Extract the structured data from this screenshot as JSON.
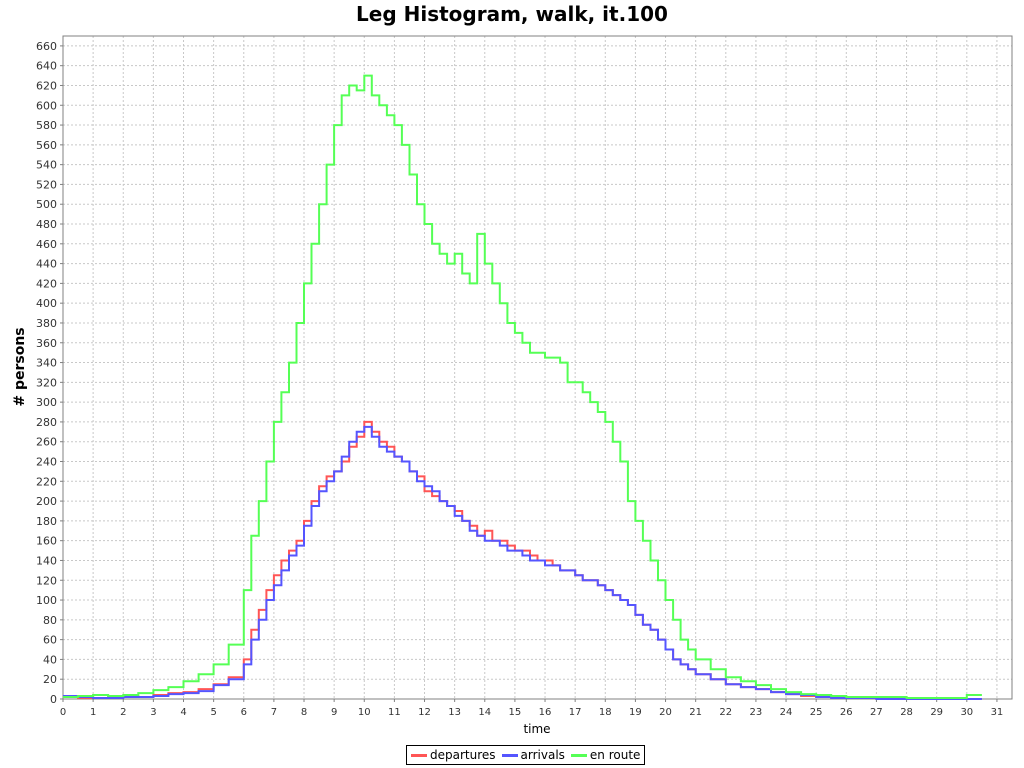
{
  "chart_data": {
    "type": "line",
    "title": "Leg Histogram, walk, it.100",
    "xlabel": "time",
    "ylabel": "# persons",
    "xlim": [
      0,
      31.5
    ],
    "ylim": [
      0,
      670
    ],
    "x_ticks": [
      0,
      1,
      2,
      3,
      4,
      5,
      6,
      7,
      8,
      9,
      10,
      11,
      12,
      13,
      14,
      15,
      16,
      17,
      18,
      19,
      20,
      21,
      22,
      23,
      24,
      25,
      26,
      27,
      28,
      29,
      30,
      31
    ],
    "y_ticks": [
      0,
      20,
      40,
      60,
      80,
      100,
      120,
      140,
      160,
      180,
      200,
      220,
      240,
      260,
      280,
      300,
      320,
      340,
      360,
      380,
      400,
      420,
      440,
      460,
      480,
      500,
      520,
      540,
      560,
      580,
      600,
      620,
      640,
      660
    ],
    "grid": true,
    "legend_position": "bottom",
    "series": [
      {
        "name": "departures",
        "color": "#ff5555",
        "x": [
          0,
          0.5,
          1,
          1.5,
          2,
          2.5,
          3,
          3.5,
          4,
          4.5,
          5,
          5.5,
          6,
          6.25,
          6.5,
          6.75,
          7,
          7.25,
          7.5,
          7.75,
          8,
          8.25,
          8.5,
          8.75,
          9,
          9.25,
          9.5,
          9.75,
          10,
          10.25,
          10.5,
          10.75,
          11,
          11.25,
          11.5,
          11.75,
          12,
          12.25,
          12.5,
          12.75,
          13,
          13.25,
          13.5,
          13.75,
          14,
          14.25,
          14.5,
          14.75,
          15,
          15.25,
          15.5,
          15.75,
          16,
          16.25,
          16.5,
          16.75,
          17,
          17.25,
          17.5,
          17.75,
          18,
          18.25,
          18.5,
          18.75,
          19,
          19.25,
          19.5,
          19.75,
          20,
          20.25,
          20.5,
          20.75,
          21,
          21.5,
          22,
          22.5,
          23,
          23.5,
          24,
          24.5,
          25,
          25.5,
          26,
          27,
          28,
          29,
          30
        ],
        "y": [
          2,
          1,
          1,
          2,
          3,
          2,
          4,
          6,
          7,
          10,
          15,
          22,
          40,
          70,
          90,
          110,
          125,
          140,
          150,
          160,
          180,
          200,
          215,
          225,
          230,
          240,
          255,
          265,
          280,
          270,
          260,
          255,
          245,
          240,
          230,
          225,
          210,
          205,
          200,
          195,
          190,
          180,
          175,
          165,
          170,
          160,
          160,
          155,
          150,
          150,
          145,
          140,
          140,
          135,
          130,
          130,
          125,
          120,
          120,
          115,
          110,
          105,
          100,
          95,
          85,
          75,
          70,
          60,
          50,
          40,
          35,
          30,
          25,
          20,
          15,
          12,
          10,
          7,
          5,
          3,
          2,
          1,
          1,
          0,
          0,
          0,
          0
        ]
      },
      {
        "name": "arrivals",
        "color": "#5555ff",
        "x": [
          0,
          0.5,
          1,
          1.5,
          2,
          2.5,
          3,
          3.5,
          4,
          4.5,
          5,
          5.5,
          6,
          6.25,
          6.5,
          6.75,
          7,
          7.25,
          7.5,
          7.75,
          8,
          8.25,
          8.5,
          8.75,
          9,
          9.25,
          9.5,
          9.75,
          10,
          10.25,
          10.5,
          10.75,
          11,
          11.25,
          11.5,
          11.75,
          12,
          12.25,
          12.5,
          12.75,
          13,
          13.25,
          13.5,
          13.75,
          14,
          14.25,
          14.5,
          14.75,
          15,
          15.25,
          15.5,
          15.75,
          16,
          16.25,
          16.5,
          16.75,
          17,
          17.25,
          17.5,
          17.75,
          18,
          18.25,
          18.5,
          18.75,
          19,
          19.25,
          19.5,
          19.75,
          20,
          20.25,
          20.5,
          20.75,
          21,
          21.5,
          22,
          22.5,
          23,
          23.5,
          24,
          24.5,
          25,
          25.5,
          26,
          27,
          28,
          29,
          30
        ],
        "y": [
          3,
          2,
          1,
          1,
          2,
          2,
          3,
          5,
          6,
          8,
          14,
          20,
          35,
          60,
          80,
          100,
          115,
          130,
          145,
          155,
          175,
          195,
          210,
          220,
          230,
          245,
          260,
          270,
          275,
          265,
          255,
          250,
          245,
          240,
          230,
          220,
          215,
          210,
          200,
          195,
          185,
          180,
          170,
          165,
          160,
          160,
          155,
          150,
          150,
          145,
          140,
          140,
          135,
          135,
          130,
          130,
          125,
          120,
          120,
          115,
          110,
          105,
          100,
          95,
          85,
          75,
          70,
          60,
          50,
          40,
          35,
          30,
          25,
          20,
          15,
          12,
          10,
          7,
          5,
          4,
          2,
          1,
          1,
          0,
          0,
          0,
          0
        ]
      },
      {
        "name": "en route",
        "color": "#55ff55",
        "x": [
          0,
          0.5,
          1,
          1.5,
          2,
          2.5,
          3,
          3.5,
          4,
          4.5,
          5,
          5.5,
          6,
          6.25,
          6.5,
          6.75,
          7,
          7.25,
          7.5,
          7.75,
          8,
          8.25,
          8.5,
          8.75,
          9,
          9.25,
          9.5,
          9.75,
          10,
          10.25,
          10.5,
          10.75,
          11,
          11.25,
          11.5,
          11.75,
          12,
          12.25,
          12.5,
          12.75,
          13,
          13.25,
          13.5,
          13.75,
          14,
          14.25,
          14.5,
          14.75,
          15,
          15.25,
          15.5,
          15.75,
          16,
          16.25,
          16.5,
          16.75,
          17,
          17.25,
          17.5,
          17.75,
          18,
          18.25,
          18.5,
          18.75,
          19,
          19.25,
          19.5,
          19.75,
          20,
          20.25,
          20.5,
          20.75,
          21,
          21.5,
          22,
          22.5,
          23,
          23.5,
          24,
          24.5,
          25,
          25.5,
          26,
          27,
          28,
          29,
          30
        ],
        "y": [
          2,
          3,
          4,
          3,
          4,
          6,
          9,
          12,
          18,
          25,
          35,
          55,
          110,
          165,
          200,
          240,
          280,
          310,
          340,
          380,
          420,
          460,
          500,
          540,
          580,
          610,
          620,
          615,
          630,
          610,
          600,
          590,
          580,
          560,
          530,
          500,
          480,
          460,
          450,
          440,
          450,
          430,
          420,
          470,
          440,
          420,
          400,
          380,
          370,
          360,
          350,
          350,
          345,
          345,
          340,
          320,
          320,
          310,
          300,
          290,
          280,
          260,
          240,
          200,
          180,
          160,
          140,
          120,
          100,
          80,
          60,
          50,
          40,
          30,
          22,
          18,
          14,
          10,
          7,
          5,
          4,
          3,
          2,
          2,
          1,
          1,
          4
        ]
      }
    ]
  }
}
